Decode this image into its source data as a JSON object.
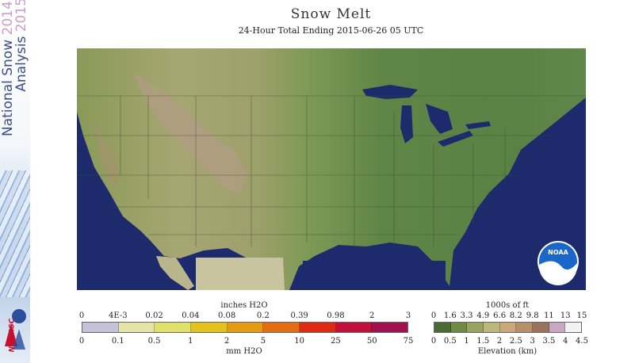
{
  "header": {
    "title": "Snow Melt",
    "subtitle": "24-Hour Total Ending 2015-06-26 05 UTC"
  },
  "sidebar": {
    "title_line1": "National Snow",
    "title_year1": "2014",
    "title_line2": "Analysis",
    "title_year2": "2015",
    "logo_text": "NOHRSC"
  },
  "map": {
    "logo_text": "NOAA"
  },
  "melt_legend": {
    "top_label": "inches H2O",
    "top_ticks": [
      "0",
      "4E-3",
      "0.02",
      "0.04",
      "0.08",
      "0.2",
      "0.39",
      "0.98",
      "2",
      "3"
    ],
    "bottom_ticks": [
      "0",
      "0.1",
      "0.5",
      "1",
      "2",
      "5",
      "10",
      "25",
      "50",
      "75"
    ],
    "bottom_label": "mm H2O",
    "colors": [
      "#c4c2d8",
      "#e6e3a6",
      "#dfe06a",
      "#e3c21c",
      "#e59a14",
      "#e36d10",
      "#de2a13",
      "#c2103a",
      "#a1104f"
    ]
  },
  "elevation_legend": {
    "top_label": "1000s of ft",
    "top_ticks": [
      "0",
      "1.6",
      "3.3",
      "4.9",
      "6.6",
      "8.2",
      "9.8",
      "11",
      "13",
      "15"
    ],
    "bottom_ticks": [
      "0",
      "0.5",
      "1",
      "1.5",
      "2",
      "2.5",
      "3",
      "3.5",
      "4",
      "4.5"
    ],
    "bottom_label": "Elevation (km)",
    "colors": [
      "#4a6b33",
      "#6f8a45",
      "#96a45f",
      "#bdb77c",
      "#c9a97a",
      "#b58f69",
      "#99745b",
      "#c8a7c4",
      "#f2f2f2"
    ]
  }
}
